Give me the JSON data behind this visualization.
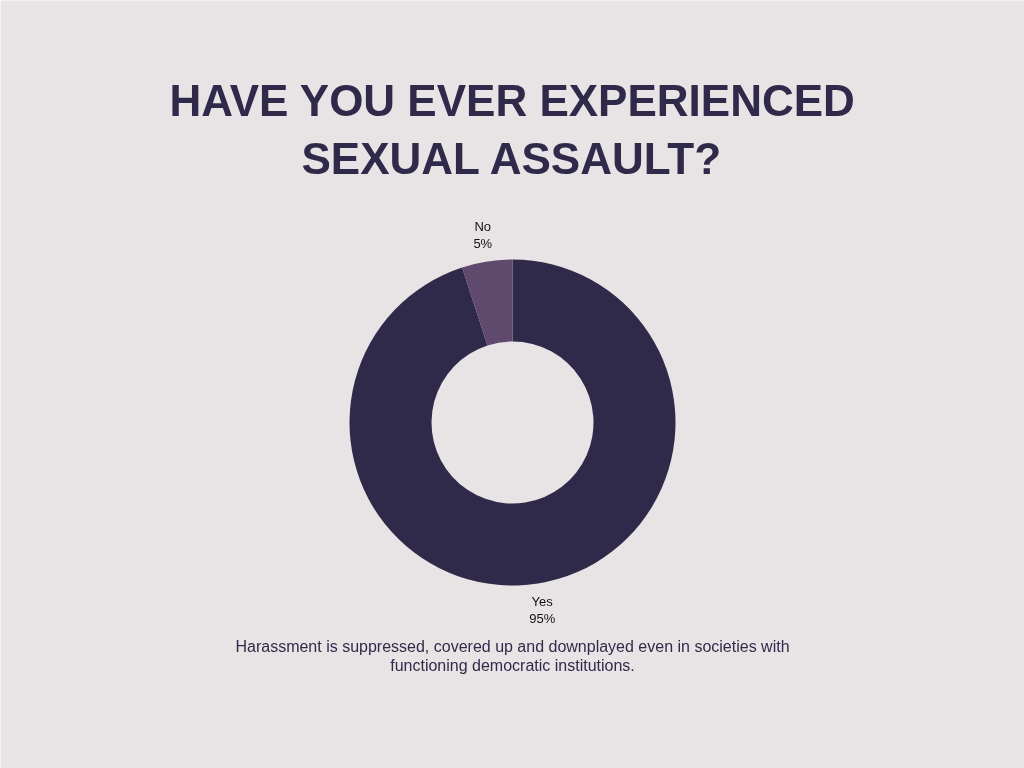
{
  "chart_data": {
    "type": "donut",
    "title": "HAVE YOU EVER EXPERIENCED SEXUAL ASSAULT?",
    "categories": [
      "Yes",
      "No"
    ],
    "values": [
      95,
      5
    ],
    "colors": [
      "#302a4a",
      "#5f4a6e"
    ],
    "value_labels": [
      "95%",
      "5%"
    ],
    "annotations": [
      "Harassment is suppressed, covered up and downplayed even in societies with functioning democratic institutions."
    ]
  }
}
